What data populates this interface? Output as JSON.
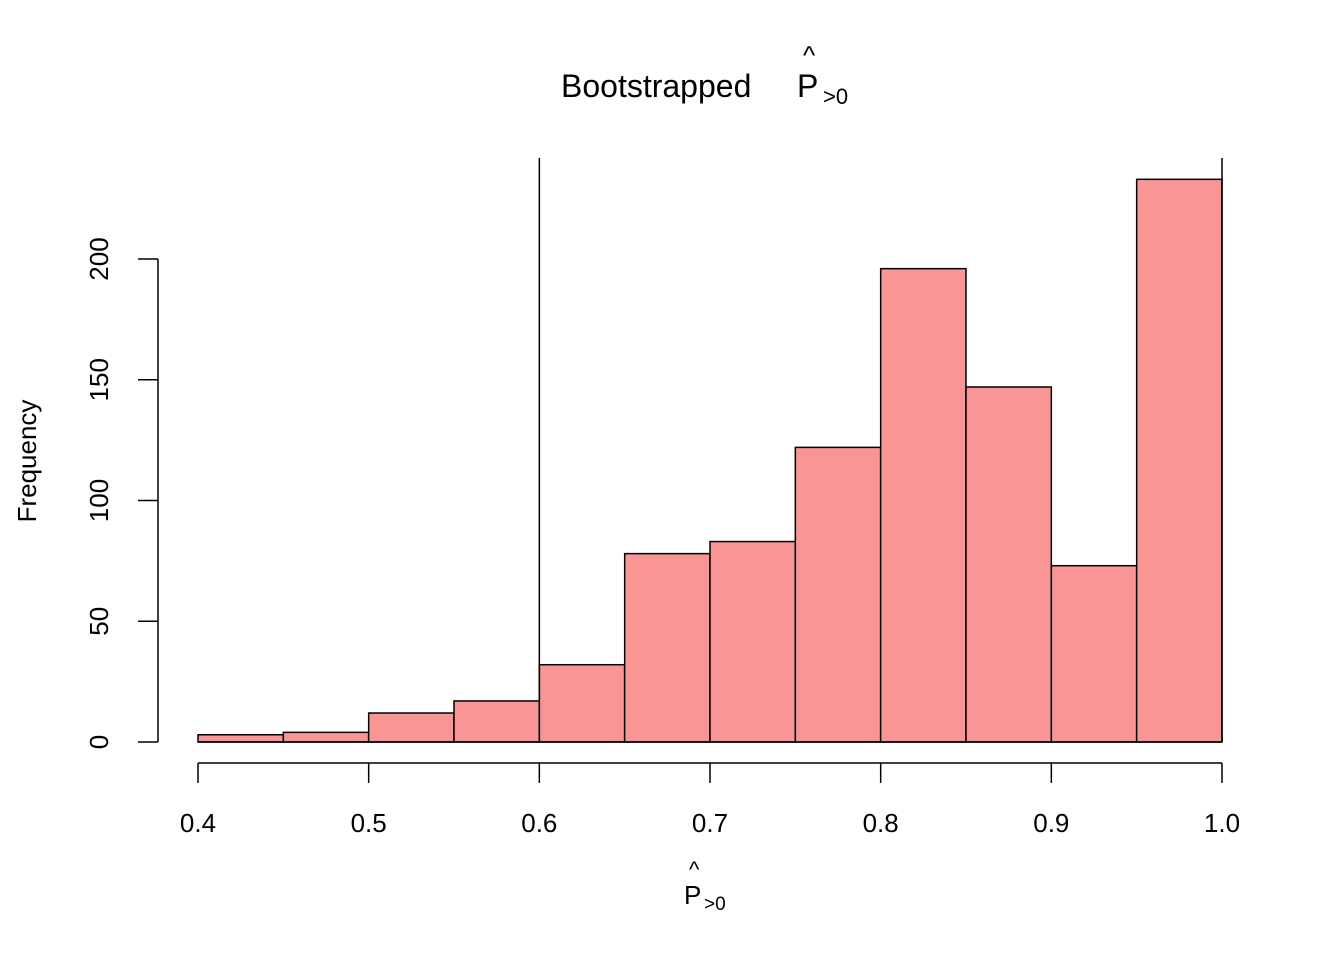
{
  "chart_data": {
    "type": "bar",
    "title": "Bootstrapped",
    "title_math": {
      "base": "P",
      "accent": "^",
      "subscript": ">0"
    },
    "xlabel": "",
    "xlabel_math": {
      "base": "P",
      "accent": "^",
      "subscript": ">0"
    },
    "ylabel": "Frequency",
    "bins": [
      {
        "x0": 0.4,
        "x1": 0.45,
        "count": 3
      },
      {
        "x0": 0.45,
        "x1": 0.5,
        "count": 4
      },
      {
        "x0": 0.5,
        "x1": 0.55,
        "count": 12
      },
      {
        "x0": 0.55,
        "x1": 0.6,
        "count": 17
      },
      {
        "x0": 0.6,
        "x1": 0.65,
        "count": 32
      },
      {
        "x0": 0.65,
        "x1": 0.7,
        "count": 78
      },
      {
        "x0": 0.7,
        "x1": 0.75,
        "count": 83
      },
      {
        "x0": 0.75,
        "x1": 0.8,
        "count": 122
      },
      {
        "x0": 0.8,
        "x1": 0.85,
        "count": 196
      },
      {
        "x0": 0.85,
        "x1": 0.9,
        "count": 147
      },
      {
        "x0": 0.9,
        "x1": 0.95,
        "count": 73
      },
      {
        "x0": 0.95,
        "x1": 1.0,
        "count": 233
      }
    ],
    "xlim": [
      0.4,
      1.0
    ],
    "ylim": [
      0,
      240
    ],
    "x_ticks": [
      0.4,
      0.5,
      0.6,
      0.7,
      0.8,
      0.9,
      1.0
    ],
    "x_tick_labels": [
      "0.4",
      "0.5",
      "0.6",
      "0.7",
      "0.8",
      "0.9",
      "1.0"
    ],
    "y_ticks": [
      0,
      50,
      100,
      150,
      200
    ],
    "y_tick_labels": [
      "0",
      "50",
      "100",
      "150",
      "200"
    ],
    "reference_lines": [
      0.6,
      1.0
    ],
    "bar_color": "#F99595",
    "edge_color": "#000000",
    "grid": false,
    "legend": "none"
  }
}
